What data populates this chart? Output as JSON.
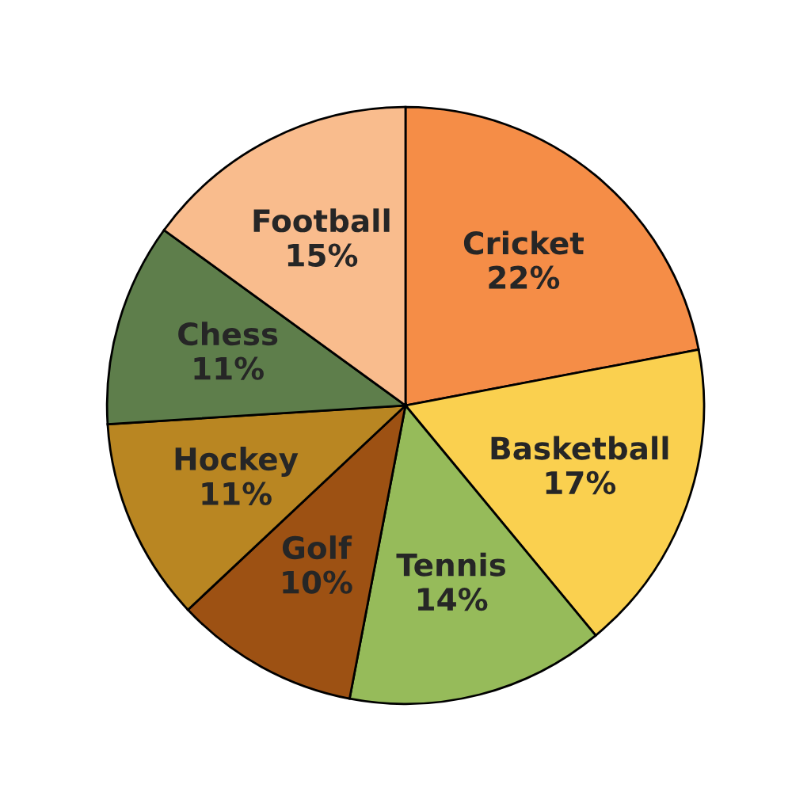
{
  "chart_data": {
    "type": "pie",
    "categories": [
      "Cricket",
      "Basketball",
      "Tennis",
      "Golf",
      "Hockey",
      "Chess",
      "Football"
    ],
    "values": [
      22,
      17,
      14,
      10,
      11,
      11,
      15
    ],
    "value_labels": [
      "22%",
      "17%",
      "14%",
      "10%",
      "11%",
      "11%",
      "15%"
    ],
    "colors": [
      "#f58d47",
      "#fad04f",
      "#96bb5a",
      "#9d5113",
      "#b98622",
      "#5e7e4b",
      "#f9bc8d"
    ]
  }
}
